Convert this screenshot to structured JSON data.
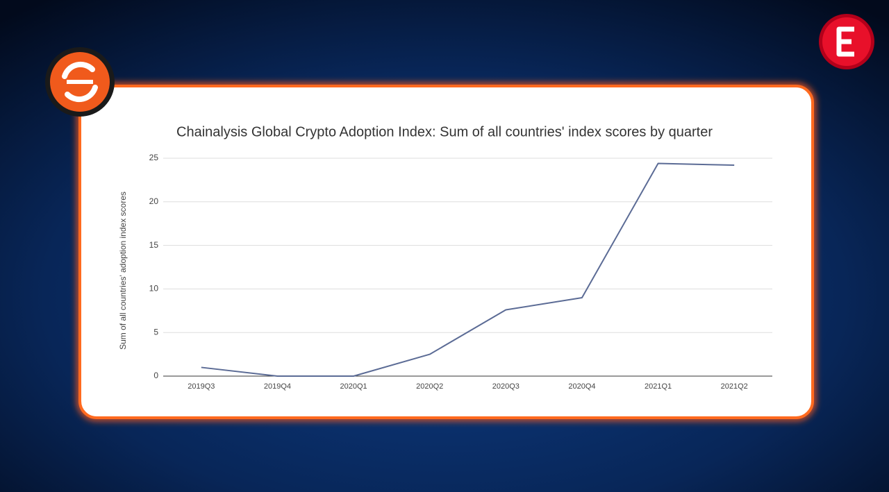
{
  "chart_data": {
    "type": "line",
    "title": "Chainalysis Global Crypto Adoption Index: Sum of all countries' index scores by quarter",
    "y_label": "Sum of all countries' adoption index scores",
    "categories": [
      "2019Q3",
      "2019Q4",
      "2020Q1",
      "2020Q2",
      "2020Q3",
      "2020Q4",
      "2021Q1",
      "2021Q2"
    ],
    "values": [
      1.0,
      0,
      0,
      2.5,
      7.6,
      9.0,
      24.4,
      24.2
    ],
    "color": "#5b6b95",
    "ylim": [
      0,
      25
    ],
    "yticks": [
      0,
      5,
      10,
      15,
      20,
      25
    ],
    "grid": true
  }
}
